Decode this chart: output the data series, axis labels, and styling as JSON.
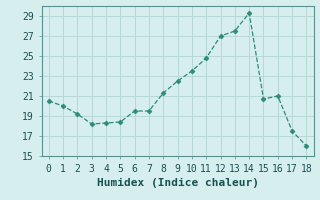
{
  "x": [
    0,
    1,
    2,
    3,
    4,
    5,
    6,
    7,
    8,
    9,
    10,
    11,
    12,
    13,
    14,
    15,
    16,
    17,
    18
  ],
  "y": [
    20.5,
    20.0,
    19.2,
    18.2,
    18.3,
    18.4,
    19.5,
    19.5,
    21.3,
    22.5,
    23.5,
    24.8,
    27.0,
    27.5,
    29.3,
    20.7,
    21.0,
    17.5,
    16.0
  ],
  "line_color": "#2d8b78",
  "marker": "D",
  "marker_size": 2.5,
  "bg_color": "#d6eeee",
  "grid_color": "#b8d8d8",
  "xlabel": "Humidex (Indice chaleur)",
  "ylim": [
    15,
    30
  ],
  "yticks": [
    15,
    17,
    19,
    21,
    23,
    25,
    27,
    29
  ],
  "xlim": [
    -0.5,
    18.5
  ],
  "xticks": [
    0,
    1,
    2,
    3,
    4,
    5,
    6,
    7,
    8,
    9,
    10,
    11,
    12,
    13,
    14,
    15,
    16,
    17,
    18
  ],
  "tick_fontsize": 7,
  "xlabel_fontsize": 8
}
